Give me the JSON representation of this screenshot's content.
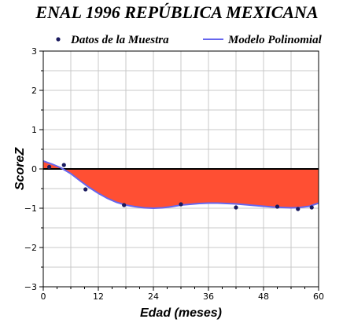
{
  "chart_data": {
    "type": "scatter",
    "title": "ENAL 1996 REPÚBLICA MEXICANA",
    "xlabel": "Edad (meses)",
    "ylabel": "ScoreZ",
    "xlim": [
      0,
      60
    ],
    "ylim": [
      -3,
      3
    ],
    "xticks": [
      0,
      12,
      24,
      36,
      48,
      60
    ],
    "yticks": [
      3,
      2,
      1,
      0,
      -1,
      -2,
      -3
    ],
    "grid": true,
    "legend_placement": "top",
    "series": [
      {
        "name": "Datos de la Muestra",
        "kind": "points",
        "color": "#1a1a5e",
        "x": [
          1.3,
          4.5,
          9.2,
          17.6,
          30.0,
          42.0,
          51.0,
          55.5,
          58.5
        ],
        "y": [
          0.05,
          0.1,
          -0.52,
          -0.92,
          -0.9,
          -0.98,
          -0.96,
          -1.02,
          -0.98
        ]
      },
      {
        "name": "Modelo Polinomial",
        "kind": "line",
        "color": "#6666ee",
        "fill_color": "#ff4f33",
        "x": [
          0,
          2,
          4,
          6,
          8,
          10,
          12,
          14,
          16,
          18,
          20,
          22,
          24,
          26,
          28,
          30,
          32,
          34,
          36,
          38,
          40,
          42,
          44,
          46,
          48,
          50,
          52,
          54,
          56,
          58,
          60
        ],
        "y": [
          0.2,
          0.12,
          0.02,
          -0.12,
          -0.3,
          -0.47,
          -0.62,
          -0.75,
          -0.85,
          -0.92,
          -0.96,
          -0.99,
          -1.0,
          -0.99,
          -0.96,
          -0.92,
          -0.9,
          -0.88,
          -0.87,
          -0.87,
          -0.88,
          -0.89,
          -0.91,
          -0.93,
          -0.95,
          -0.97,
          -0.98,
          -0.99,
          -0.98,
          -0.95,
          -0.87
        ]
      }
    ]
  }
}
